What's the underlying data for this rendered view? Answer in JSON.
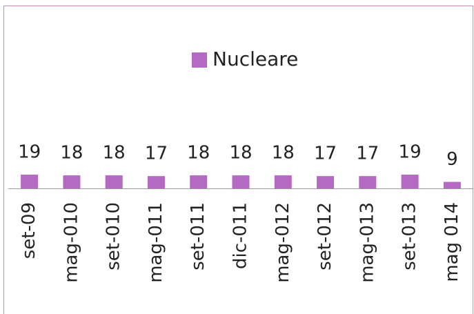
{
  "chart_data": {
    "type": "bar",
    "legend": "Nucleare",
    "categories": [
      "set-09",
      "mag-010",
      "set-010",
      "mag-011",
      "set-011",
      "dic-011",
      "mag-012",
      "set-012",
      "mag-013",
      "set-013",
      "mag 014"
    ],
    "values": [
      19,
      18,
      18,
      17,
      18,
      18,
      18,
      17,
      17,
      19,
      9
    ],
    "color": "#b469c2"
  }
}
